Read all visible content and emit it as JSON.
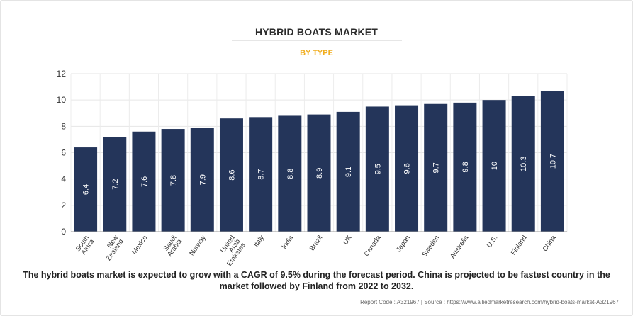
{
  "header": {
    "title": "HYBRID BOATS MARKET",
    "subtitle": "BY TYPE"
  },
  "chart_data": {
    "type": "bar",
    "categories": [
      "South Africa",
      "New Zealand",
      "Mexico",
      "Saudi Arabia",
      "Norway",
      "United Arab Emirates",
      "Italy",
      "India",
      "Brazil",
      "UK",
      "Canada",
      "Japan",
      "Sweden",
      "Australia",
      "U.S.",
      "Finland",
      "China"
    ],
    "category_label_lines": [
      [
        "South",
        "Africa"
      ],
      [
        "New",
        "Zealand"
      ],
      [
        "Mexico"
      ],
      [
        "Saudi",
        "Arabia"
      ],
      [
        "Norway"
      ],
      [
        "United",
        "Arab",
        "Emirates"
      ],
      [
        "Italy"
      ],
      [
        "India"
      ],
      [
        "Brazil"
      ],
      [
        "UK"
      ],
      [
        "Canada"
      ],
      [
        "Japan"
      ],
      [
        "Sweden"
      ],
      [
        "Australia"
      ],
      [
        "U.S."
      ],
      [
        "Finland"
      ],
      [
        "China"
      ]
    ],
    "values": [
      6.4,
      7.2,
      7.6,
      7.8,
      7.9,
      8.6,
      8.7,
      8.8,
      8.9,
      9.1,
      9.5,
      9.6,
      9.7,
      9.8,
      10,
      10.3,
      10.7
    ],
    "ylim": [
      0,
      12
    ],
    "yticks": [
      "0",
      "2",
      "4",
      "6",
      "8",
      "10",
      "12"
    ],
    "grid": true,
    "bar_color": "#24355a",
    "label_color": "#ffffff"
  },
  "caption": "The hybrid boats market is expected to grow with a CAGR of 9.5% during the forecast period. China is projected to be fastest country in the market followed by Finland from 2022 to 2032.",
  "footer": "Report Code : A321967  |  Source : https://www.alliedmarketresearch.com/hybrid-boats-market-A321967"
}
